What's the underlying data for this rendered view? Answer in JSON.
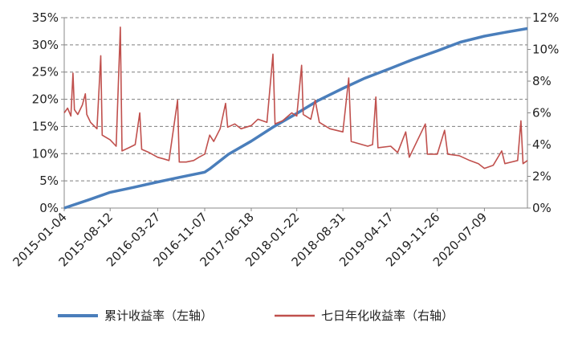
{
  "chart_data": {
    "type": "line",
    "x_axis_type": "date",
    "x_range": [
      "2015-01-04",
      "2021-01-31"
    ],
    "x_ticks": [
      "2015-01-04",
      "2015-08-12",
      "2016-03-27",
      "2016-11-07",
      "2017-06-18",
      "2018-01-22",
      "2018-08-31",
      "2019-04-17",
      "2019-11-26",
      "2020-07-09"
    ],
    "y_left": {
      "ticks": [
        "0%",
        "5%",
        "10%",
        "15%",
        "20%",
        "25%",
        "30%",
        "35%"
      ],
      "ylim": [
        0,
        35
      ],
      "unit": "%"
    },
    "y_right": {
      "ticks": [
        "0%",
        "2%",
        "4%",
        "6%",
        "8%",
        "10%",
        "12%"
      ],
      "ylim": [
        0,
        12
      ],
      "unit": "%"
    },
    "grid": "horizontal dashed",
    "legend_position": "bottom",
    "series": [
      {
        "name": "累计收益率（左轴）",
        "axis": "left",
        "color": "#4a7ebb",
        "points": [
          [
            "2015-01-04",
            0.0
          ],
          [
            "2015-05-01",
            1.5
          ],
          [
            "2015-08-12",
            2.9
          ],
          [
            "2015-12-01",
            3.8
          ],
          [
            "2016-03-27",
            4.8
          ],
          [
            "2016-07-15",
            5.7
          ],
          [
            "2016-11-07",
            6.6
          ],
          [
            "2016-12-01",
            7.2
          ],
          [
            "2017-03-01",
            9.9
          ],
          [
            "2017-06-18",
            12.3
          ],
          [
            "2017-10-01",
            14.9
          ],
          [
            "2018-01-22",
            17.4
          ],
          [
            "2018-05-01",
            19.7
          ],
          [
            "2018-08-31",
            22.0
          ],
          [
            "2018-12-15",
            23.9
          ],
          [
            "2019-04-17",
            25.7
          ],
          [
            "2019-08-01",
            27.3
          ],
          [
            "2019-11-26",
            28.9
          ],
          [
            "2020-03-15",
            30.5
          ],
          [
            "2020-07-09",
            31.6
          ],
          [
            "2020-10-15",
            32.3
          ],
          [
            "2021-01-31",
            33.0
          ]
        ]
      },
      {
        "name": "七日年化收益率（右轴）",
        "axis": "right",
        "color": "#c0504d",
        "points": [
          [
            "2015-01-04",
            6.0
          ],
          [
            "2015-01-20",
            6.3
          ],
          [
            "2015-02-05",
            5.8
          ],
          [
            "2015-02-15",
            8.5
          ],
          [
            "2015-02-22",
            6.2
          ],
          [
            "2015-03-10",
            5.9
          ],
          [
            "2015-04-01",
            6.5
          ],
          [
            "2015-04-15",
            7.2
          ],
          [
            "2015-04-22",
            5.9
          ],
          [
            "2015-05-10",
            5.4
          ],
          [
            "2015-06-10",
            5.0
          ],
          [
            "2015-06-28",
            9.6
          ],
          [
            "2015-07-05",
            4.6
          ],
          [
            "2015-08-12",
            4.3
          ],
          [
            "2015-09-10",
            3.9
          ],
          [
            "2015-09-30",
            11.4
          ],
          [
            "2015-10-08",
            3.6
          ],
          [
            "2015-11-10",
            3.8
          ],
          [
            "2015-12-10",
            4.0
          ],
          [
            "2016-01-01",
            6.0
          ],
          [
            "2016-01-10",
            3.7
          ],
          [
            "2016-02-15",
            3.5
          ],
          [
            "2016-03-27",
            3.2
          ],
          [
            "2016-04-25",
            3.1
          ],
          [
            "2016-05-20",
            3.0
          ],
          [
            "2016-06-30",
            6.8
          ],
          [
            "2016-07-08",
            2.9
          ],
          [
            "2016-08-10",
            2.9
          ],
          [
            "2016-09-15",
            3.0
          ],
          [
            "2016-10-10",
            3.2
          ],
          [
            "2016-11-07",
            3.4
          ],
          [
            "2016-12-01",
            4.6
          ],
          [
            "2016-12-20",
            4.2
          ],
          [
            "2017-01-20",
            5.0
          ],
          [
            "2017-02-15",
            6.6
          ],
          [
            "2017-02-25",
            5.1
          ],
          [
            "2017-03-31",
            5.3
          ],
          [
            "2017-04-30",
            5.0
          ],
          [
            "2017-06-18",
            5.2
          ],
          [
            "2017-07-20",
            5.6
          ],
          [
            "2017-09-01",
            5.4
          ],
          [
            "2017-09-30",
            9.7
          ],
          [
            "2017-10-10",
            5.3
          ],
          [
            "2017-11-15",
            5.5
          ],
          [
            "2017-12-29",
            6.0
          ],
          [
            "2018-01-22",
            5.8
          ],
          [
            "2018-02-14",
            9.0
          ],
          [
            "2018-02-22",
            5.9
          ],
          [
            "2018-03-30",
            5.6
          ],
          [
            "2018-04-20",
            6.8
          ],
          [
            "2018-05-10",
            5.4
          ],
          [
            "2018-06-30",
            5.0
          ],
          [
            "2018-08-31",
            4.8
          ],
          [
            "2018-09-28",
            8.2
          ],
          [
            "2018-10-10",
            4.2
          ],
          [
            "2018-12-28",
            3.9
          ],
          [
            "2019-01-20",
            4.0
          ],
          [
            "2019-02-05",
            7.0
          ],
          [
            "2019-02-15",
            3.8
          ],
          [
            "2019-04-17",
            3.9
          ],
          [
            "2019-05-20",
            3.5
          ],
          [
            "2019-06-28",
            4.8
          ],
          [
            "2019-07-15",
            3.2
          ],
          [
            "2019-09-30",
            5.3
          ],
          [
            "2019-10-10",
            3.4
          ],
          [
            "2019-11-26",
            3.4
          ],
          [
            "2019-12-31",
            4.9
          ],
          [
            "2020-01-15",
            3.4
          ],
          [
            "2020-03-10",
            3.3
          ],
          [
            "2020-04-30",
            3.0
          ],
          [
            "2020-06-10",
            2.8
          ],
          [
            "2020-07-09",
            2.5
          ],
          [
            "2020-08-20",
            2.7
          ],
          [
            "2020-09-30",
            3.6
          ],
          [
            "2020-10-15",
            2.8
          ],
          [
            "2020-12-15",
            3.0
          ],
          [
            "2020-12-31",
            5.5
          ],
          [
            "2021-01-10",
            2.8
          ],
          [
            "2021-01-31",
            3.0
          ]
        ]
      }
    ]
  }
}
